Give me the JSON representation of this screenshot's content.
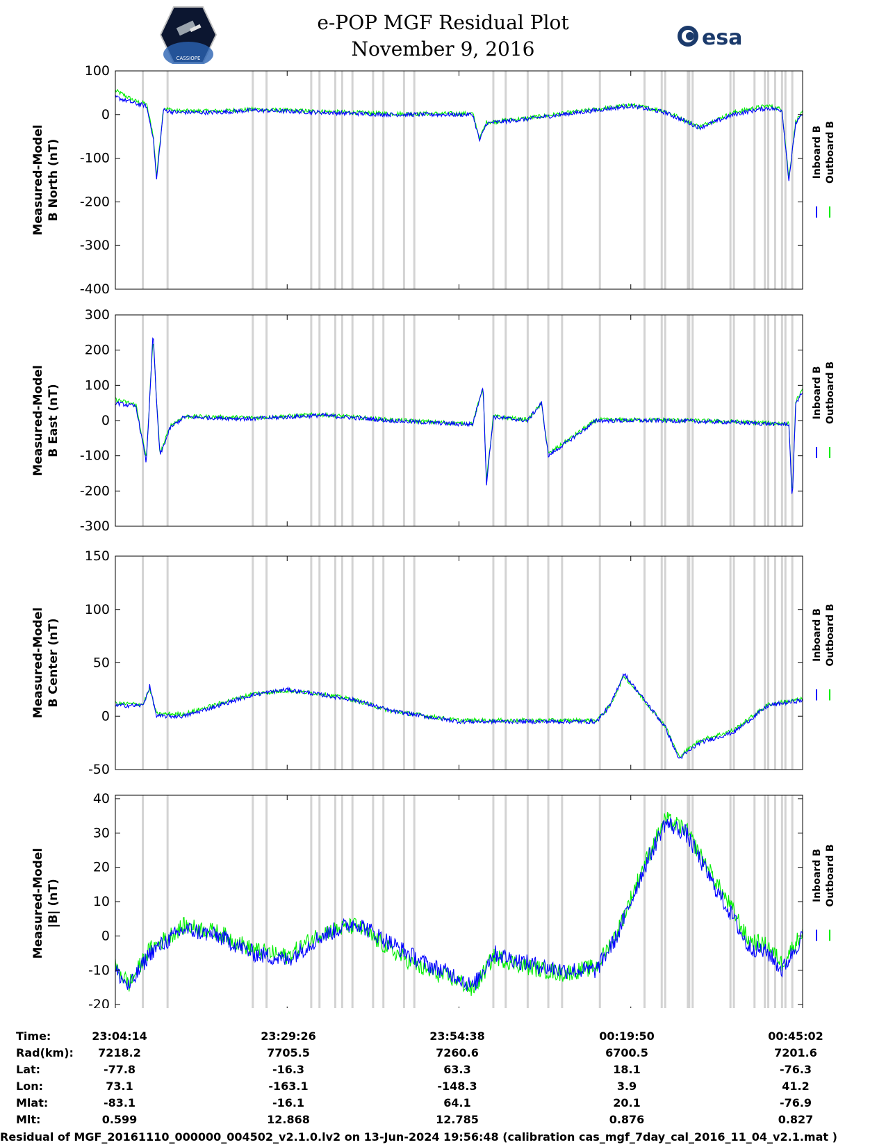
{
  "title": {
    "line1": "e-POP MGF Residual Plot",
    "line2": "November 9, 2016"
  },
  "logos": {
    "left": {
      "icon": "cassiope-mission-logo",
      "text": "CASSIOPE"
    },
    "right": {
      "icon": "esa-logo",
      "text": "esa"
    }
  },
  "colors": {
    "inboard": "#0000ff",
    "outboard": "#00ee00",
    "gaps": "#d3d3d3"
  },
  "legend": {
    "inboard": "Inboard B",
    "outboard": "Outboard B"
  },
  "chart_data": [
    {
      "type": "line",
      "ylabel_line1": "Measured-Model",
      "ylabel_line2": "B North (nT)",
      "ylim": [
        -400,
        100
      ],
      "yticks": [
        "100",
        "0",
        "-100",
        "-200",
        "-300",
        "-400"
      ],
      "ytick_values": [
        100,
        0,
        -100,
        -200,
        -300,
        -400
      ],
      "x": [
        0,
        0.03,
        0.045,
        0.055,
        0.06,
        0.07,
        0.09,
        0.15,
        0.2,
        0.3,
        0.4,
        0.45,
        0.5,
        0.52,
        0.53,
        0.54,
        0.6,
        0.65,
        0.7,
        0.75,
        0.8,
        0.85,
        0.9,
        0.93,
        0.95,
        0.97,
        0.98,
        0.99,
        1
      ],
      "series": [
        {
          "name": "Inboard B",
          "values": [
            40,
            25,
            20,
            -50,
            -150,
            10,
            5,
            5,
            10,
            5,
            0,
            0,
            0,
            0,
            -60,
            -20,
            -10,
            0,
            10,
            20,
            5,
            -30,
            0,
            10,
            15,
            10,
            -150,
            -20,
            0
          ]
        },
        {
          "name": "Outboard B",
          "values": [
            55,
            30,
            25,
            -45,
            -140,
            15,
            8,
            8,
            12,
            7,
            2,
            2,
            2,
            2,
            -55,
            -18,
            -8,
            2,
            12,
            22,
            8,
            -28,
            5,
            15,
            20,
            12,
            -145,
            -15,
            5
          ]
        }
      ]
    },
    {
      "type": "line",
      "ylabel_line1": "Measured-Model",
      "ylabel_line2": "B East (nT)",
      "ylim": [
        -300,
        300
      ],
      "yticks": [
        "300",
        "200",
        "100",
        "0",
        "-100",
        "-200",
        "-300"
      ],
      "ytick_values": [
        300,
        200,
        100,
        0,
        -100,
        -200,
        -300
      ],
      "x": [
        0,
        0.03,
        0.045,
        0.055,
        0.06,
        0.065,
        0.08,
        0.1,
        0.2,
        0.3,
        0.4,
        0.5,
        0.52,
        0.535,
        0.54,
        0.55,
        0.6,
        0.62,
        0.63,
        0.7,
        0.8,
        0.9,
        0.96,
        0.98,
        0.985,
        0.99,
        1
      ],
      "series": [
        {
          "name": "Inboard B",
          "values": [
            50,
            40,
            -120,
            250,
            50,
            -100,
            -20,
            10,
            5,
            15,
            0,
            -10,
            -10,
            100,
            -180,
            10,
            0,
            50,
            -100,
            0,
            0,
            -5,
            -10,
            -10,
            -230,
            50,
            80
          ]
        },
        {
          "name": "Outboard B",
          "values": [
            60,
            45,
            -110,
            240,
            55,
            -95,
            -15,
            12,
            8,
            17,
            2,
            -8,
            -8,
            95,
            -170,
            12,
            2,
            48,
            -95,
            2,
            2,
            -3,
            -8,
            -8,
            -220,
            55,
            85
          ]
        }
      ]
    },
    {
      "type": "line",
      "ylabel_line1": "Measured-Model",
      "ylabel_line2": "B Center (nT)",
      "ylim": [
        -50,
        150
      ],
      "yticks": [
        "150",
        "100",
        "50",
        "0",
        "-50"
      ],
      "ytick_values": [
        150,
        100,
        50,
        0,
        -50
      ],
      "x": [
        0,
        0.04,
        0.05,
        0.06,
        0.1,
        0.2,
        0.25,
        0.3,
        0.35,
        0.4,
        0.5,
        0.6,
        0.7,
        0.72,
        0.74,
        0.8,
        0.82,
        0.85,
        0.9,
        0.95,
        1
      ],
      "series": [
        {
          "name": "Inboard B",
          "values": [
            10,
            10,
            28,
            0,
            0,
            20,
            25,
            20,
            15,
            5,
            -5,
            -5,
            -5,
            10,
            40,
            -10,
            -40,
            -25,
            -15,
            10,
            15
          ]
        },
        {
          "name": "Outboard B",
          "values": [
            12,
            11,
            26,
            2,
            2,
            21,
            24,
            21,
            15,
            5,
            -4,
            -4,
            -4,
            10,
            38,
            -9,
            -38,
            -23,
            -13,
            11,
            16
          ]
        }
      ]
    },
    {
      "type": "line",
      "ylabel_line1": "Measured-Model",
      "ylabel_line2": "|B| (nT)",
      "ylim": [
        -22,
        41
      ],
      "yticks": [
        "40",
        "30",
        "20",
        "10",
        "0",
        "-10",
        "-20"
      ],
      "ytick_values": [
        40,
        30,
        20,
        10,
        0,
        -10,
        -20
      ],
      "x": [
        0,
        0.02,
        0.05,
        0.1,
        0.15,
        0.2,
        0.25,
        0.3,
        0.35,
        0.4,
        0.45,
        0.5,
        0.52,
        0.55,
        0.6,
        0.65,
        0.7,
        0.73,
        0.77,
        0.8,
        0.83,
        0.87,
        0.9,
        0.92,
        0.95,
        0.97,
        1
      ],
      "series": [
        {
          "name": "Inboard B",
          "values": [
            -10,
            -15,
            -5,
            2,
            0,
            -5,
            -7,
            0,
            4,
            -2,
            -8,
            -12,
            -15,
            -5,
            -8,
            -10,
            -10,
            0,
            20,
            33,
            30,
            15,
            5,
            -3,
            -5,
            -10,
            0
          ]
        },
        {
          "name": "Outboard B",
          "values": [
            -9,
            -14,
            -4,
            3,
            1,
            -4,
            -6,
            1,
            3,
            -4,
            -10,
            -13,
            -16,
            -6,
            -9,
            -11,
            -9,
            1,
            21,
            34,
            31,
            17,
            7,
            -1,
            -3,
            -8,
            1
          ]
        }
      ]
    }
  ],
  "info_table": {
    "labels": [
      "Time:",
      "Rad(km):",
      "Lat:",
      "Lon:",
      "Mlat:",
      "Mlt:"
    ],
    "columns": [
      [
        "23:04:14",
        "7218.2",
        "-77.8",
        "73.1",
        "-83.1",
        "0.599"
      ],
      [
        "23:29:26",
        "7705.5",
        "-16.3",
        "-163.1",
        "-16.1",
        "12.868"
      ],
      [
        "23:54:38",
        "7260.6",
        "63.3",
        "-148.3",
        "64.1",
        "12.785"
      ],
      [
        "00:19:50",
        "6700.5",
        "18.1",
        "3.9",
        "20.1",
        "0.876"
      ],
      [
        "00:45:02",
        "7201.6",
        "-76.3",
        "41.2",
        "-76.9",
        "0.827"
      ]
    ]
  },
  "footer": "Residual of MGF_20161110_000000_004502_v2.1.0.lv2 on 13-Jun-2024 19:56:48 (calibration cas_mgf_7day_cal_2016_11_04_v2.1.mat )"
}
